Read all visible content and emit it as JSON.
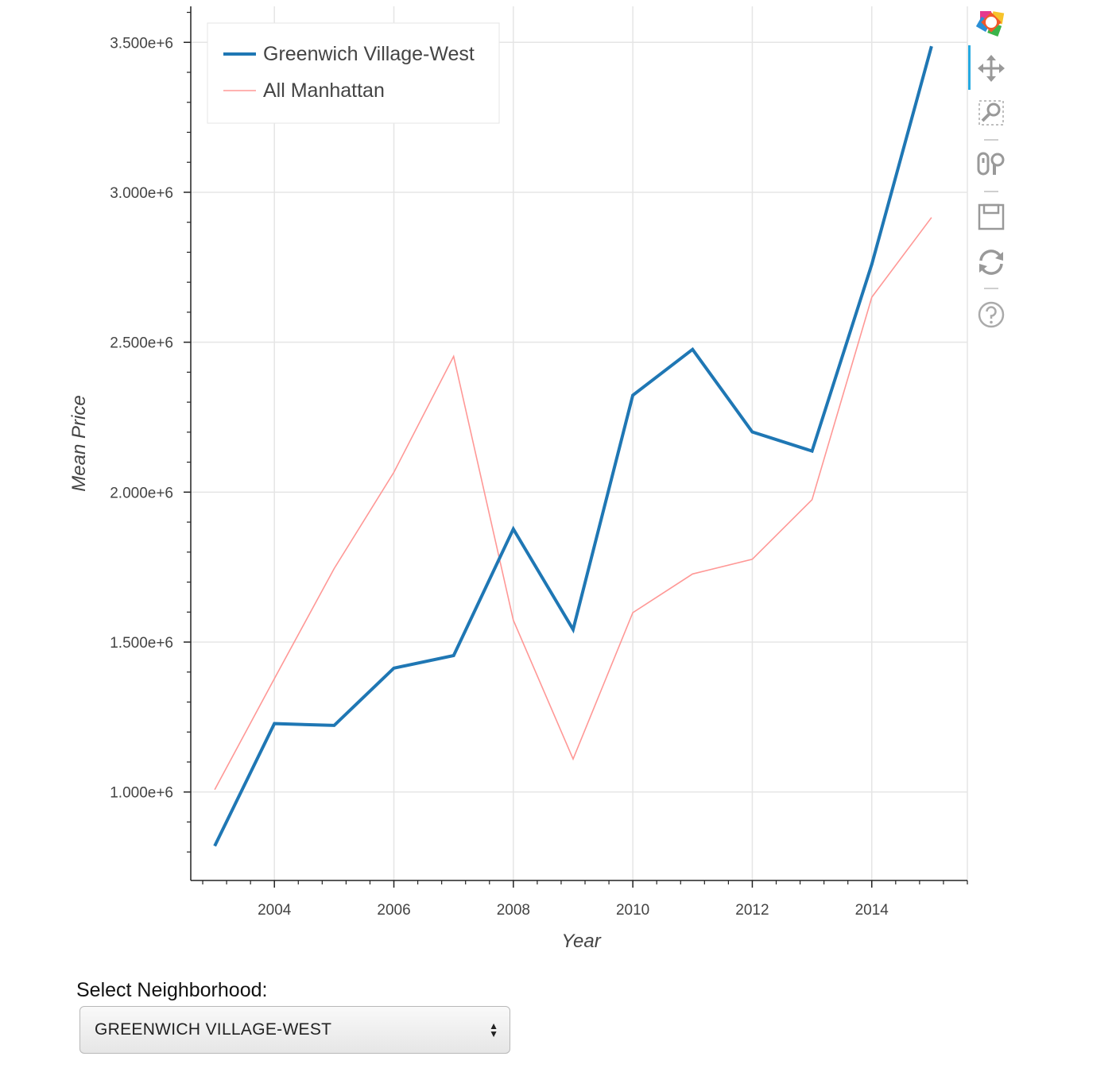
{
  "chart_data": {
    "type": "line",
    "title": "",
    "xlabel": "Year",
    "ylabel": "Mean Price",
    "xlim": [
      2002.6,
      2015.6
    ],
    "ylim": [
      705000,
      3620000
    ],
    "x_ticks": [
      2004,
      2006,
      2008,
      2010,
      2012,
      2014
    ],
    "x_tick_labels": [
      "2004",
      "2006",
      "2008",
      "2010",
      "2012",
      "2014"
    ],
    "y_ticks": [
      1000000,
      1500000,
      2000000,
      2500000,
      3000000,
      3500000
    ],
    "y_tick_labels": [
      "1.000e+6",
      "1.500e+6",
      "2.000e+6",
      "2.500e+6",
      "3.000e+6",
      "3.500e+6"
    ],
    "grid": true,
    "legend_position": "top-left",
    "x": [
      2003,
      2004,
      2005,
      2006,
      2007,
      2008,
      2009,
      2010,
      2011,
      2012,
      2013,
      2014,
      2015
    ],
    "series": [
      {
        "name": "Greenwich Village-West",
        "color": "#1f77b4",
        "values": [
          820000,
          1228000,
          1222000,
          1413000,
          1455000,
          1877000,
          1542000,
          2323000,
          2476000,
          2201000,
          2137000,
          2760000,
          3487000
        ]
      },
      {
        "name": "All Manhattan",
        "color": "#ff9896",
        "values": [
          1008000,
          1378000,
          1745000,
          2066000,
          2453000,
          1573000,
          1110000,
          1598000,
          1727000,
          1776000,
          1975000,
          2650000,
          2916000
        ]
      }
    ]
  },
  "toolbar": {
    "tools": [
      "bokeh-logo-icon",
      "pan-icon",
      "box-zoom-icon",
      "wheel-zoom-icon",
      "save-icon",
      "reset-icon",
      "help-icon"
    ],
    "active_color": "#26aae1"
  },
  "widget": {
    "label": "Select Neighborhood:",
    "selected": "GREENWICH VILLAGE-WEST"
  }
}
